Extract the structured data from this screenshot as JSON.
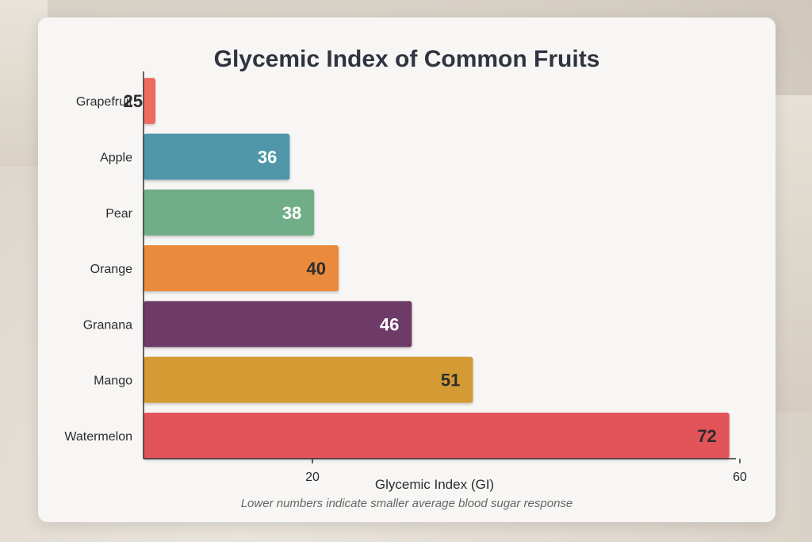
{
  "chart_data": {
    "type": "bar",
    "orientation": "horizontal",
    "title": "Glycemic Index of Common Fruits",
    "xlabel": "Glycemic Index (GI)",
    "ylabel": "",
    "note": "Lower numbers indicate smaller average blood sugar response",
    "categories": [
      "Grapefruit",
      "Apple",
      "Pear",
      "Orange",
      "Granana",
      "Mango",
      "Watermelon"
    ],
    "values": [
      25,
      36,
      38,
      40,
      46,
      51,
      72
    ],
    "colors": [
      "#ef6b5e",
      "#4f97a8",
      "#6fae87",
      "#ea8a3c",
      "#6e3b67",
      "#d49b35",
      "#e3535a"
    ],
    "label_colors": [
      "#2c2c2c",
      "#ffffff",
      "#ffffff",
      "#2c2c2c",
      "#ffffff",
      "#2c2c2c",
      "#2c2c2c"
    ],
    "xticks": [
      20,
      60,
      80
    ],
    "grid": false
  }
}
